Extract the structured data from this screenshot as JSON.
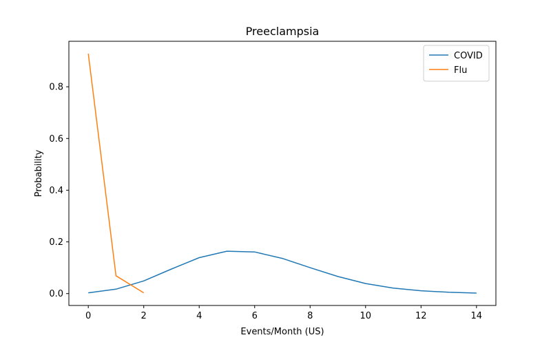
{
  "chart_data": {
    "type": "line",
    "title": "Preeclampsia",
    "xlabel": "Events/Month (US)",
    "ylabel": "Probability",
    "xlim": [
      -0.7,
      14.7
    ],
    "ylim": [
      -0.046,
      0.976
    ],
    "xticks": [
      0,
      2,
      4,
      6,
      8,
      10,
      12,
      14
    ],
    "yticks": [
      0.0,
      0.2,
      0.4,
      0.6,
      0.8
    ],
    "grid": false,
    "legend": "top-right",
    "series": [
      {
        "name": "COVID",
        "color": "#1f77b4",
        "x": [
          0,
          1,
          2,
          3,
          4,
          5,
          6,
          7,
          8,
          9,
          10,
          11,
          12,
          13,
          14
        ],
        "y": [
          0.003,
          0.017,
          0.049,
          0.095,
          0.139,
          0.164,
          0.161,
          0.136,
          0.1,
          0.066,
          0.039,
          0.021,
          0.011,
          0.005,
          0.002
        ]
      },
      {
        "name": "Flu",
        "color": "#ff7f0e",
        "x": [
          0,
          1,
          2
        ],
        "y": [
          0.928,
          0.069,
          0.003
        ]
      }
    ]
  }
}
